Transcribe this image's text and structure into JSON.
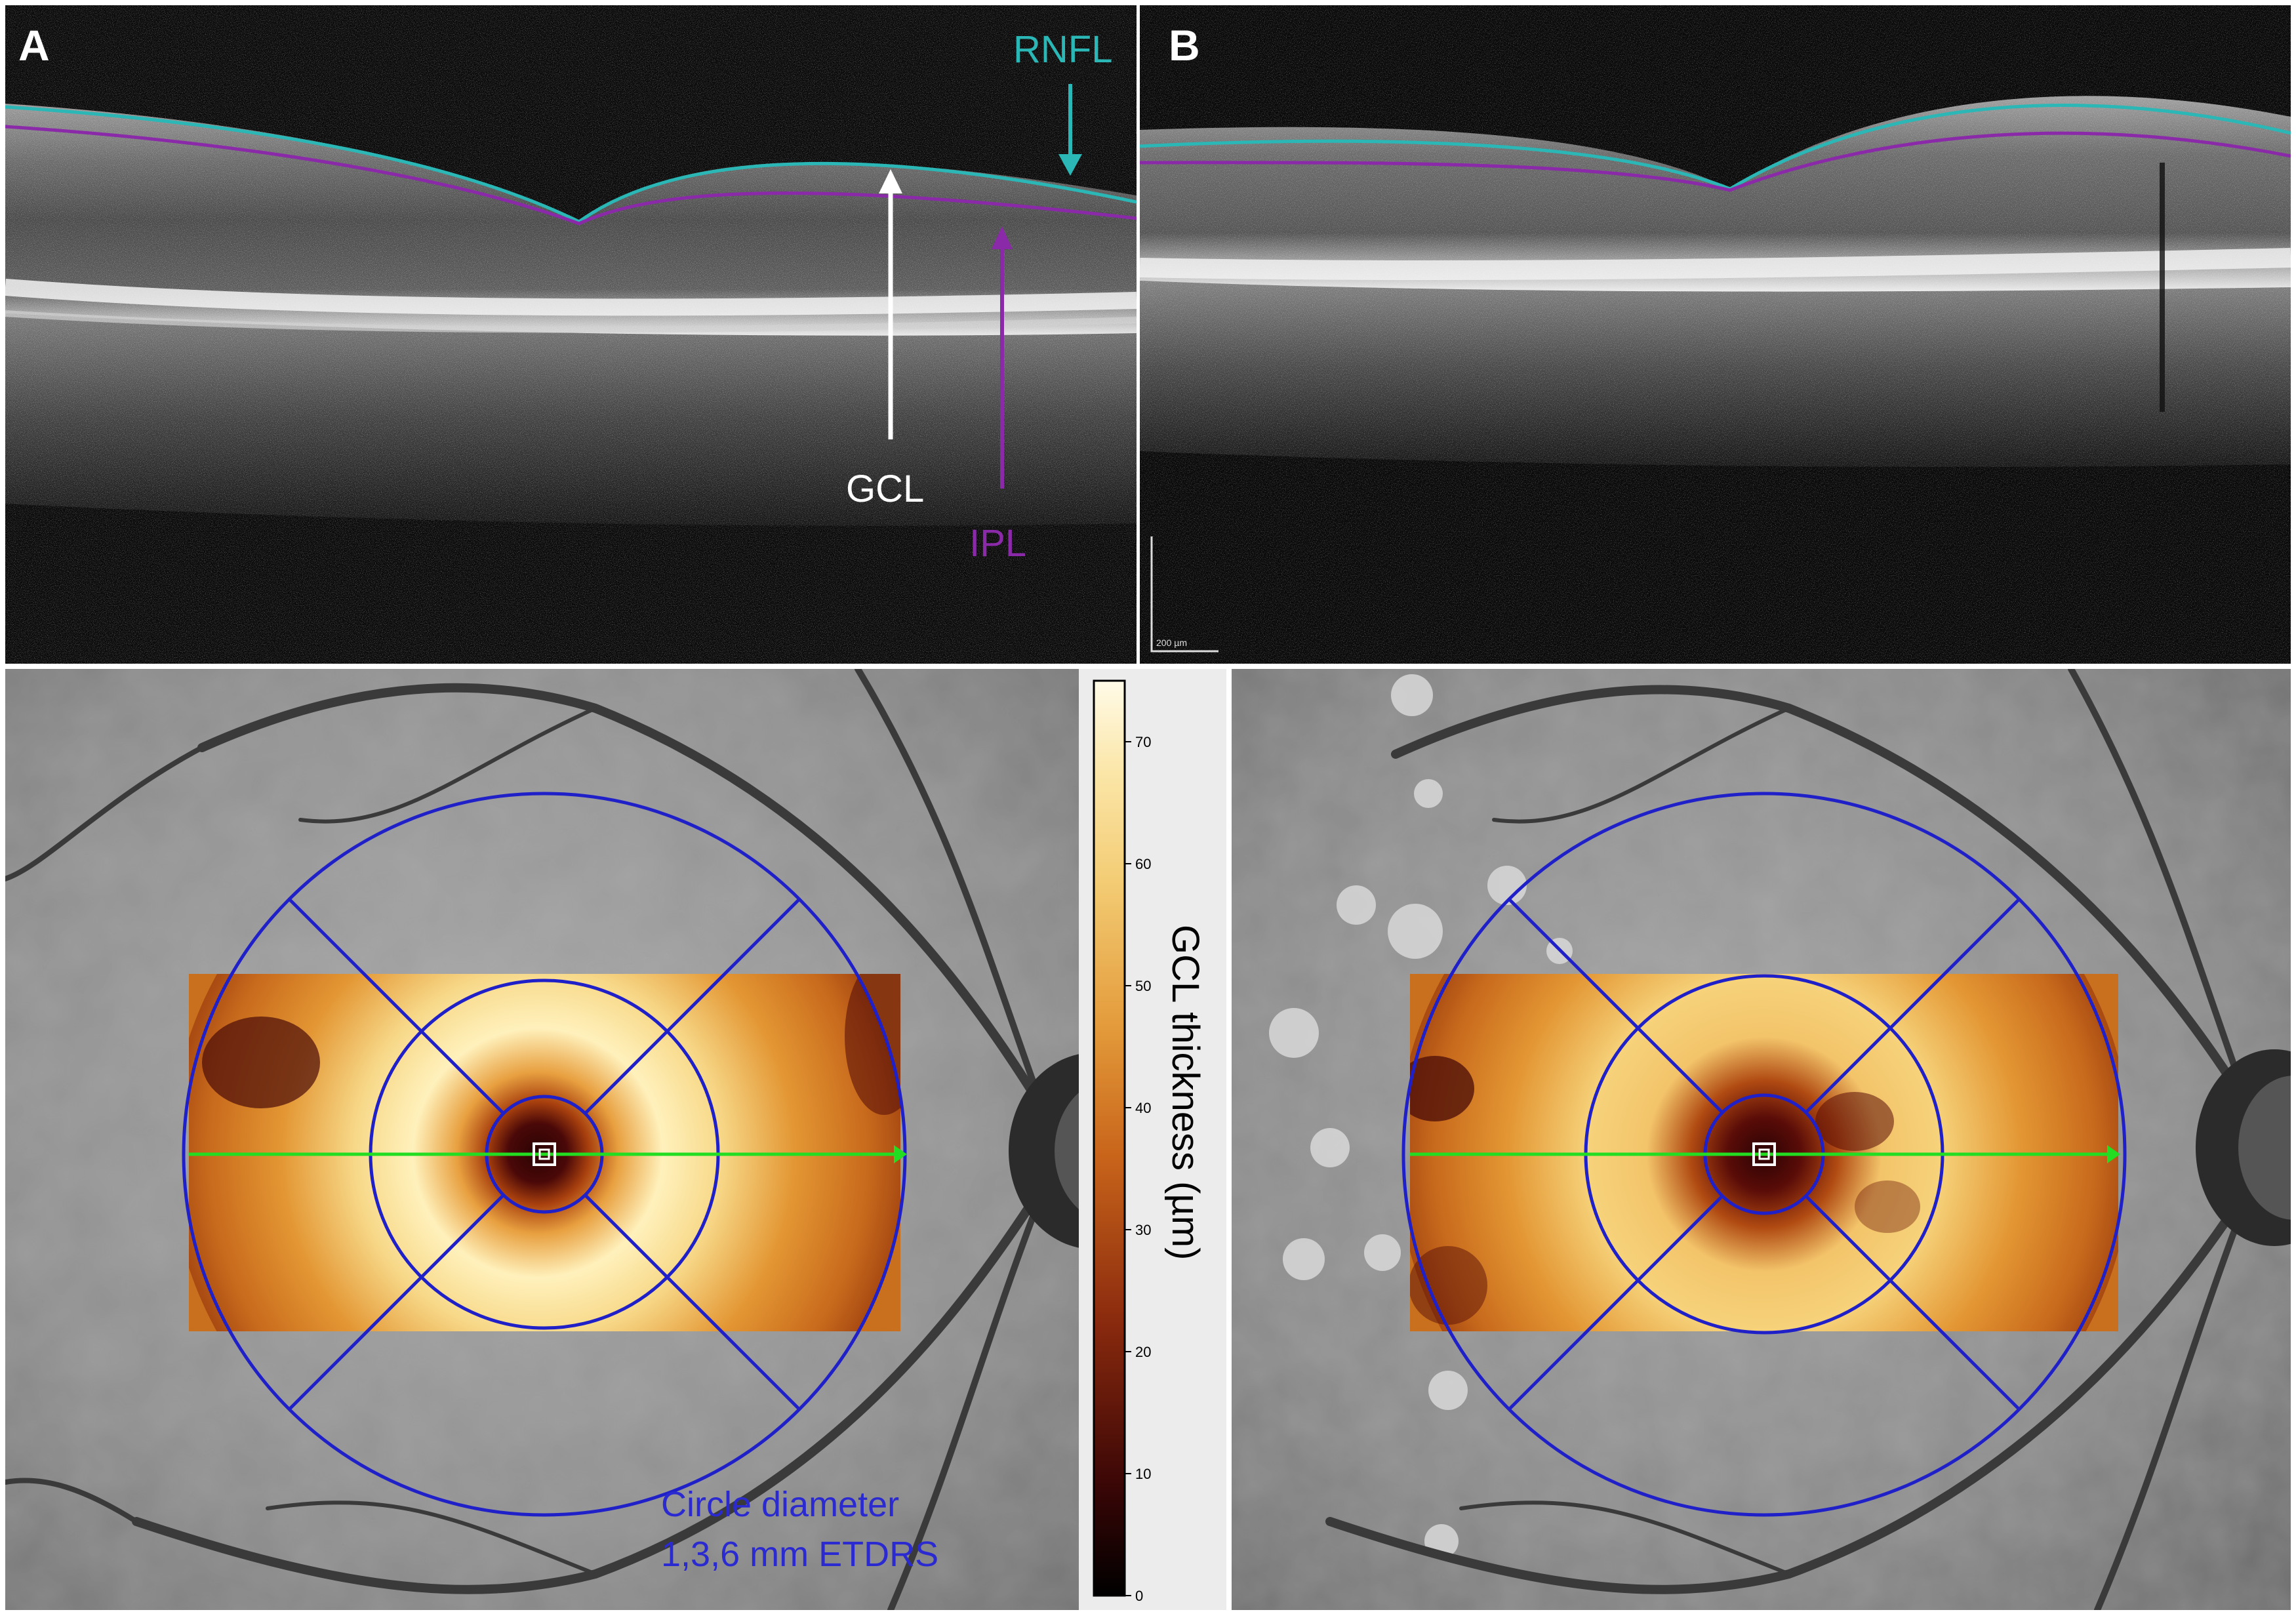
{
  "panels": {
    "a": {
      "letter": "A"
    },
    "b": {
      "letter": "B"
    }
  },
  "annotations": {
    "rnfl": "RNFL",
    "gcl": "GCL",
    "ipl": "IPL",
    "scale_bar": "200 µm",
    "etdrs_line1": "Circle diameter",
    "etdrs_line2": "1,3,6 mm ETDRS"
  },
  "colorbar": {
    "label": "GCL thickness (µm)",
    "ticks": [
      "70",
      "60",
      "50",
      "40",
      "30",
      "20",
      "10",
      "0"
    ],
    "tick_values": [
      70,
      60,
      50,
      40,
      30,
      20,
      10,
      0
    ],
    "range": [
      0,
      75
    ]
  },
  "colors": {
    "rnfl": "#2ab7b5",
    "ipl": "#8a2aa8",
    "gcl_arrow": "#ffffff",
    "etdrs_grid": "#2020c8",
    "scan_line": "#22dd22",
    "text_blue": "#2a2ad0",
    "heat_dark": "#3a0606",
    "heat_mid": "#d2791c",
    "heat_light": "#fff3c4"
  }
}
